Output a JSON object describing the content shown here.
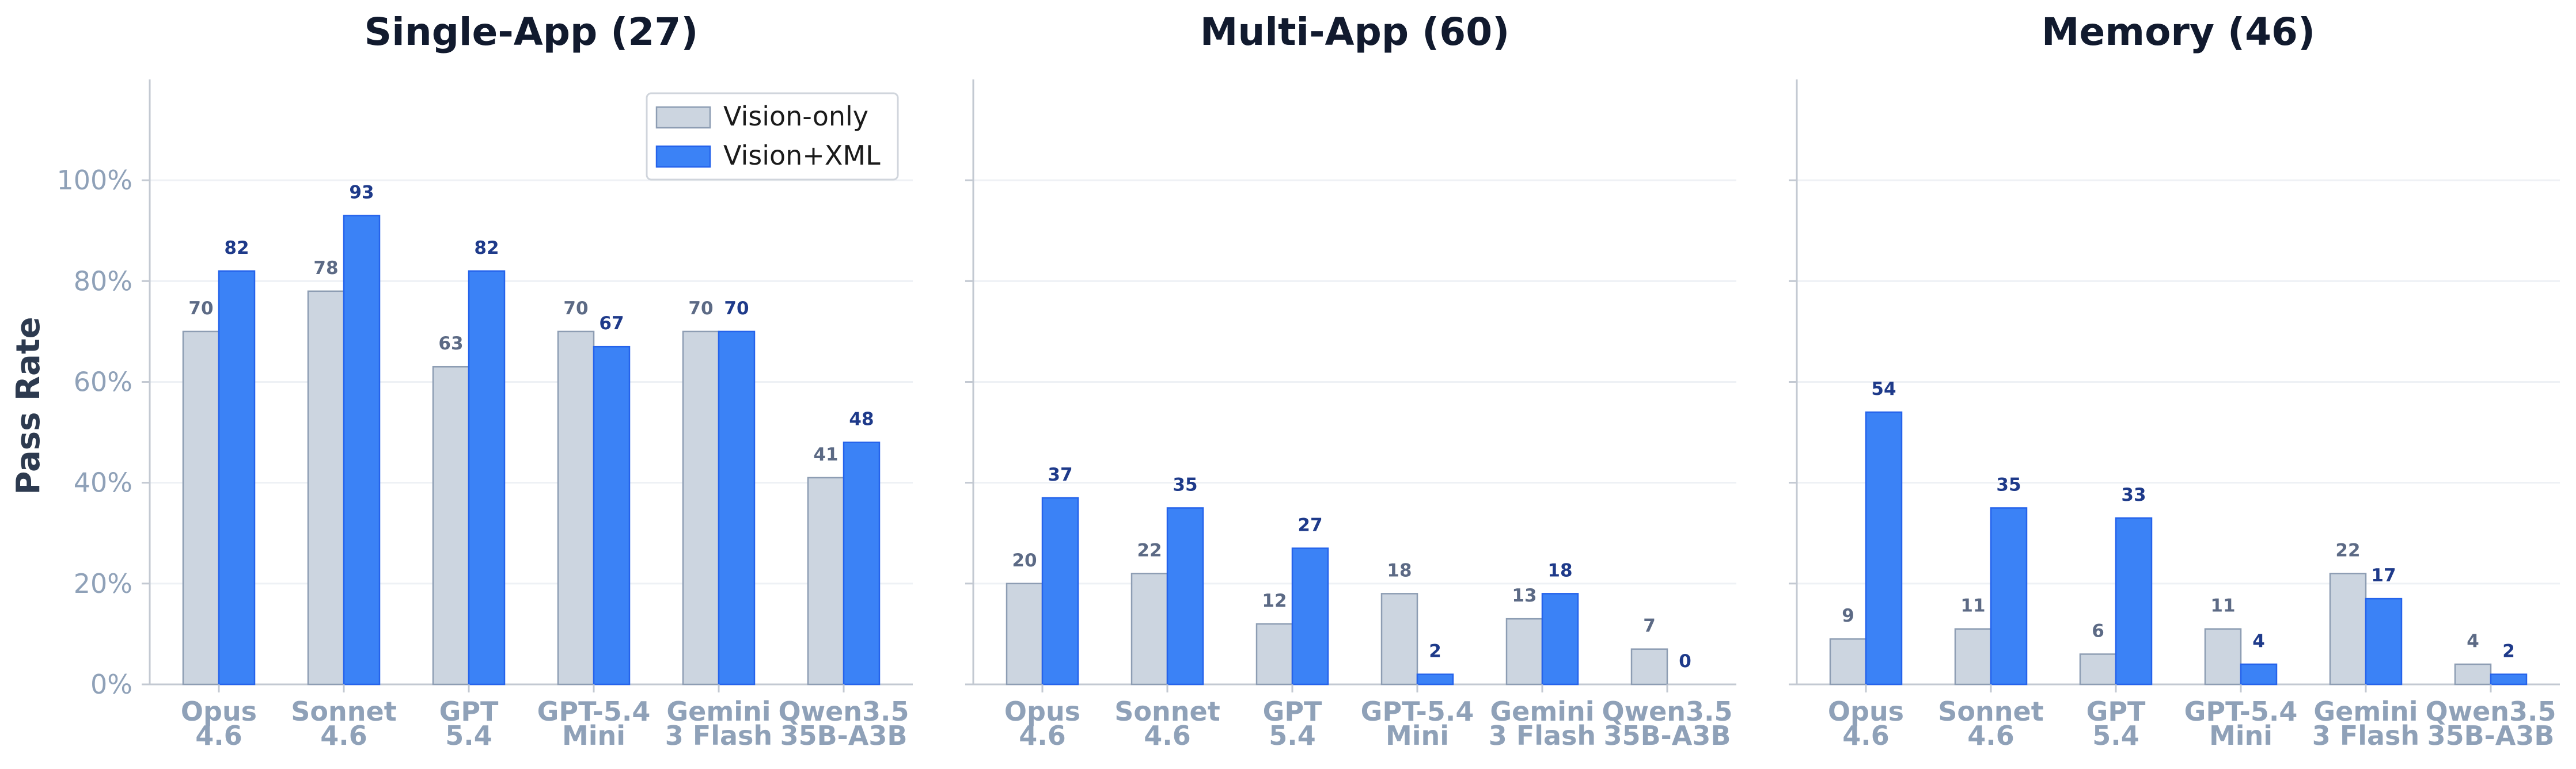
{
  "chart_data": {
    "type": "bar",
    "ylabel": "Pass Rate",
    "ylim": [
      0,
      120
    ],
    "yticks": [
      0,
      20,
      40,
      60,
      80,
      100
    ],
    "ytick_labels": [
      "0%",
      "20%",
      "40%",
      "60%",
      "80%",
      "100%"
    ],
    "grid": true,
    "legend_position": "top-right of first panel",
    "legend": [
      "Vision-only",
      "Vision+XML"
    ],
    "colors": {
      "Vision-only": "#ccd5e0",
      "Vision+XML": "#3b82f6",
      "label_only": "#5c6a85",
      "label_xml": "#1e3a8a"
    },
    "categories": [
      "Opus\n4.6",
      "Sonnet\n4.6",
      "GPT\n5.4",
      "GPT-5.4\nMini",
      "Gemini\n3 Flash",
      "Qwen3.5\n35B-A3B"
    ],
    "panels": [
      {
        "title": "Single-App (27)",
        "series": [
          {
            "name": "Vision-only",
            "values": [
              70,
              78,
              63,
              70,
              70,
              41
            ]
          },
          {
            "name": "Vision+XML",
            "values": [
              82,
              93,
              82,
              67,
              70,
              48
            ]
          }
        ]
      },
      {
        "title": "Multi-App (60)",
        "series": [
          {
            "name": "Vision-only",
            "values": [
              20,
              22,
              12,
              18,
              13,
              7
            ]
          },
          {
            "name": "Vision+XML",
            "values": [
              37,
              35,
              27,
              2,
              18,
              0
            ]
          }
        ]
      },
      {
        "title": "Memory (46)",
        "series": [
          {
            "name": "Vision-only",
            "values": [
              9,
              11,
              6,
              11,
              22,
              4
            ]
          },
          {
            "name": "Vision+XML",
            "values": [
              54,
              35,
              33,
              4,
              17,
              2
            ]
          }
        ]
      }
    ]
  }
}
